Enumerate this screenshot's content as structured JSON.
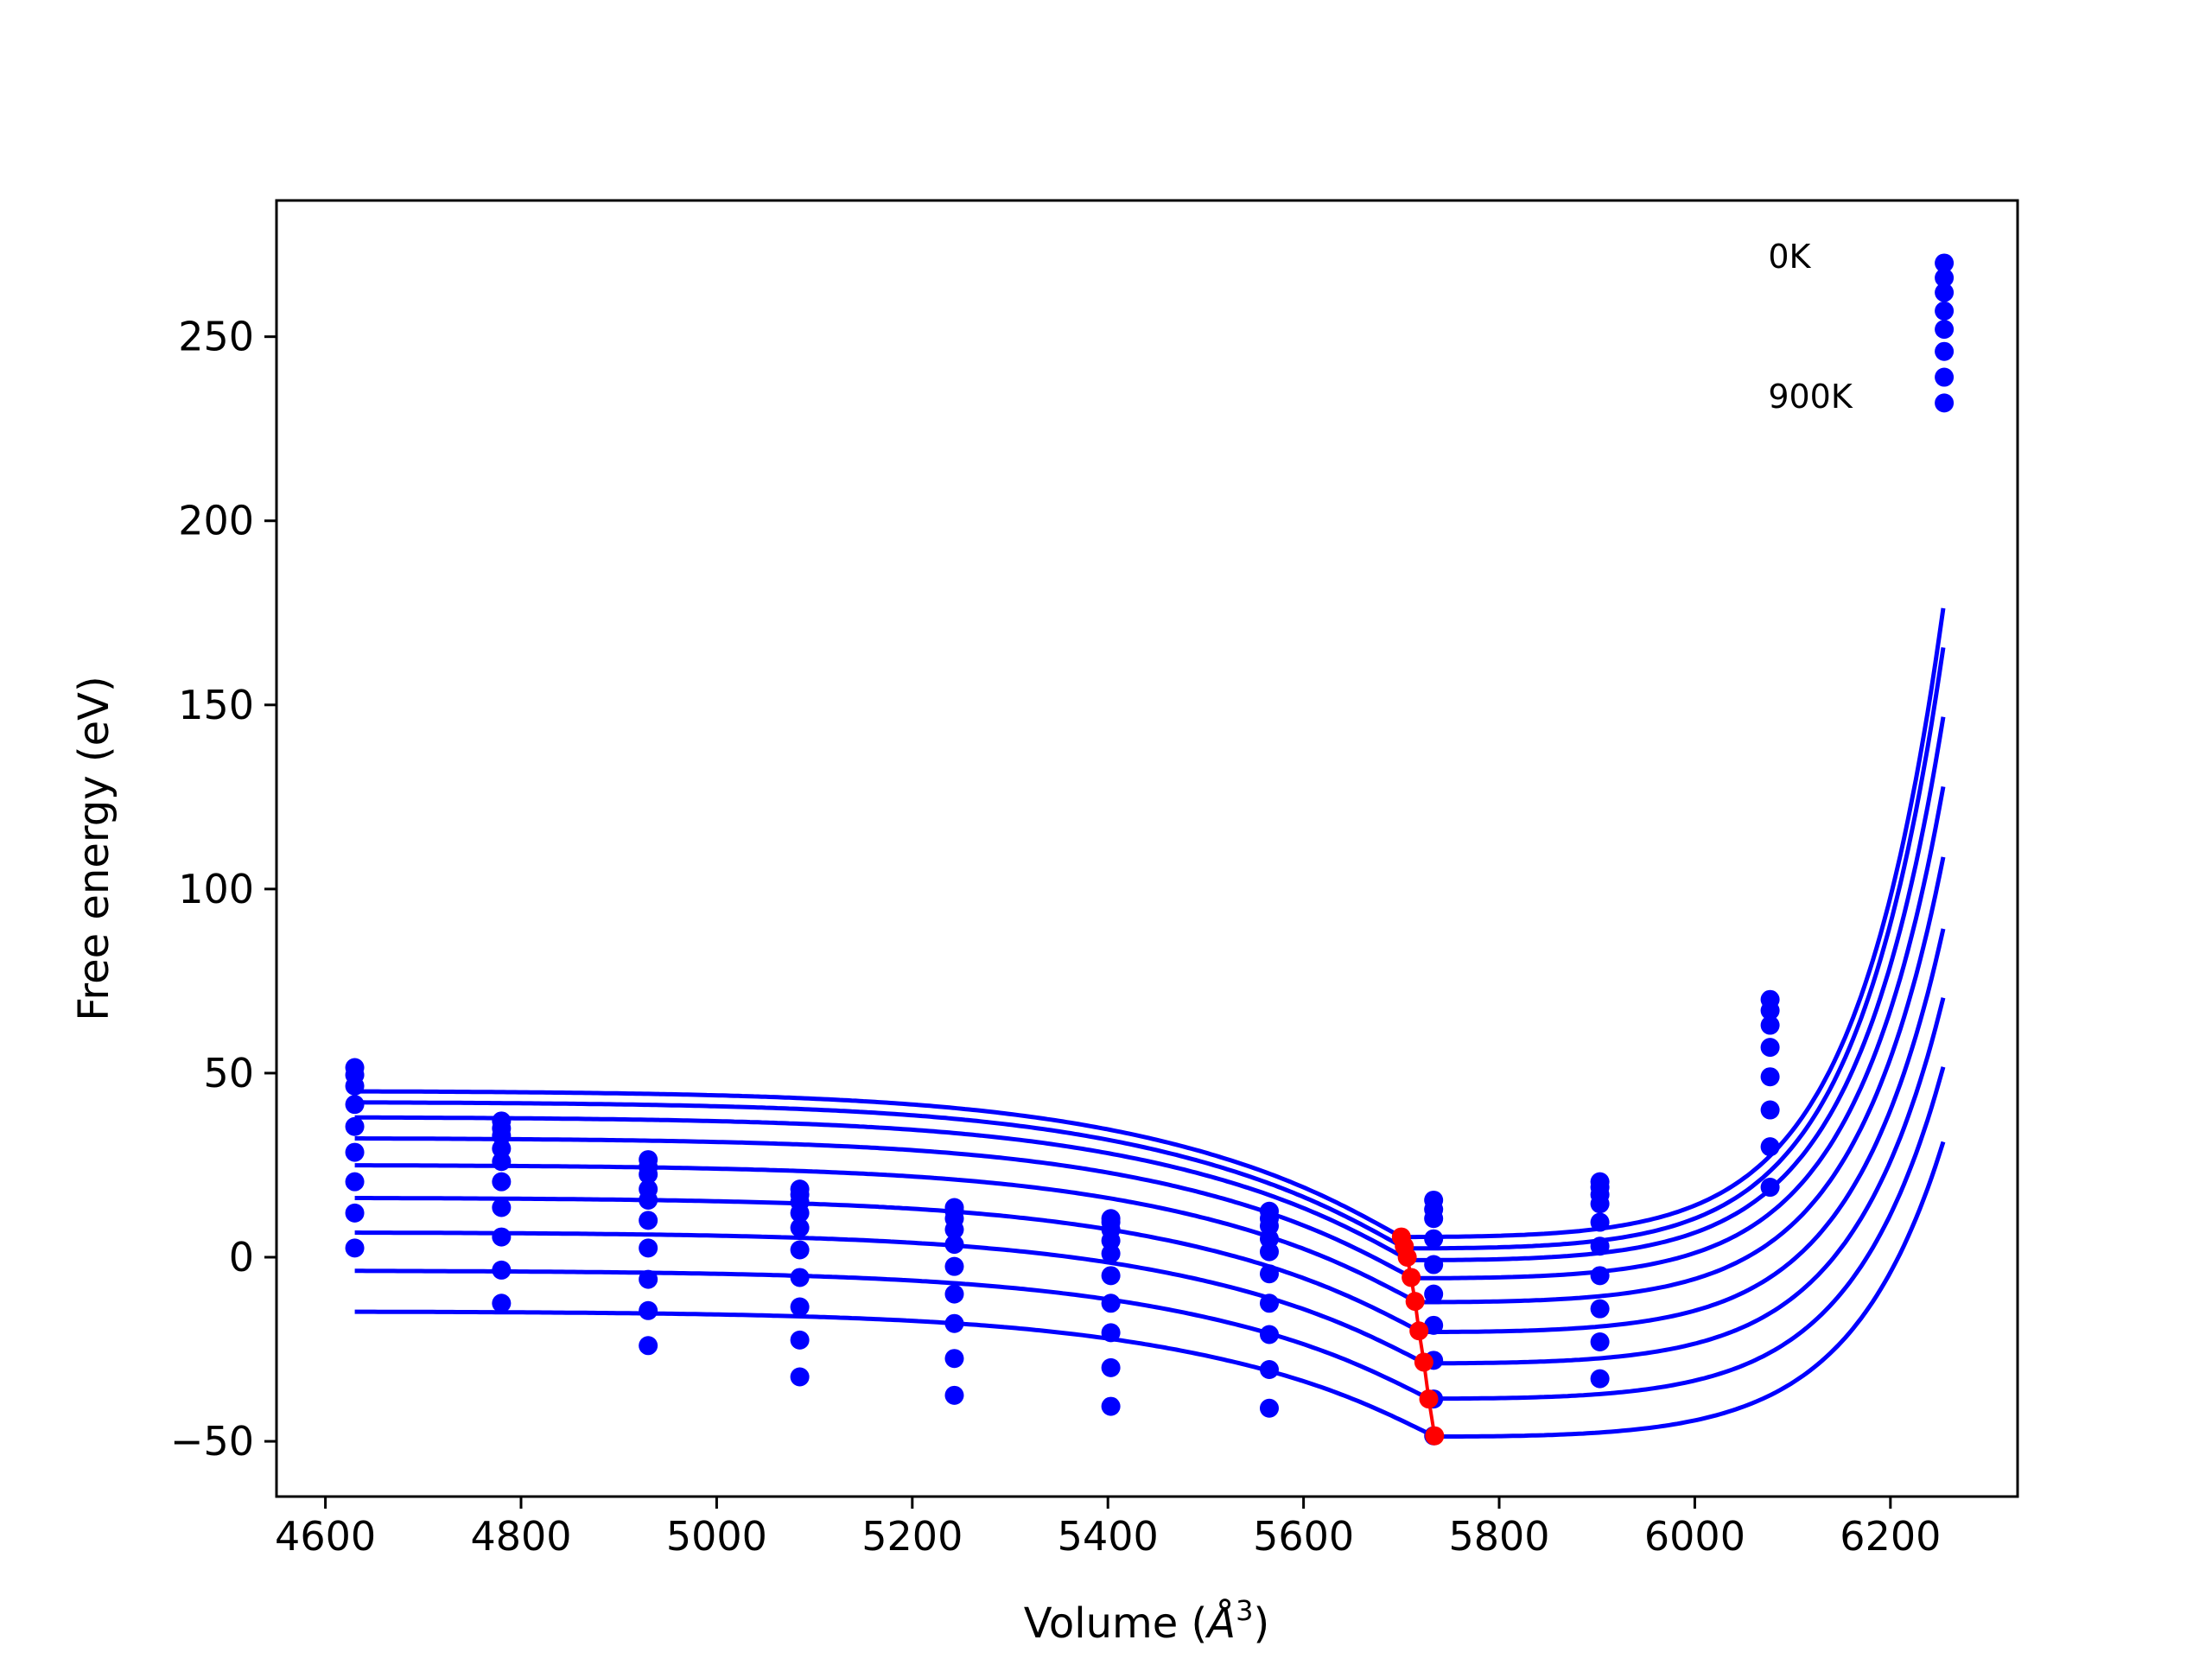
{
  "chart_data": {
    "type": "line",
    "title": "",
    "xlabel": "Volume ($\\AA^3$)",
    "xlabel_parts": {
      "prefix": "Volume (",
      "symbol": "Å",
      "superscript": "3",
      "suffix": ")"
    },
    "ylabel": "Free energy (eV)",
    "xlim": [
      4550,
      6330
    ],
    "ylim": [
      -65,
      287
    ],
    "xticks": [
      4600,
      4800,
      5000,
      5200,
      5400,
      5600,
      5800,
      6000,
      6200
    ],
    "xtick_labels": [
      "4600",
      "4800",
      "5000",
      "5200",
      "5400",
      "5600",
      "5800",
      "6000",
      "6200"
    ],
    "yticks": [
      -50,
      0,
      50,
      100,
      150,
      200,
      250
    ],
    "ytick_labels": [
      "−50",
      "0",
      "50",
      "100",
      "150",
      "200",
      "250"
    ],
    "grid": false,
    "legend": "none",
    "annotations": [
      {
        "text": "0K",
        "x": 6075,
        "y": 272
      },
      {
        "text": "900K",
        "x": 6075,
        "y": 234
      }
    ],
    "colors": {
      "curves": "#0000ff",
      "points": "#0000ff",
      "minima": "#ff0000"
    },
    "x": [
      4630,
      4780,
      4930,
      5085,
      5243,
      5403,
      5565,
      5733,
      5903,
      6077,
      6255
    ],
    "series": [
      {
        "values": [
          51.5,
          37,
          26.5,
          18.5,
          13.5,
          10.5,
          12.5,
          15.5,
          20.5,
          70,
          270
        ]
      },
      {
        "values": [
          49.5,
          35,
          24.5,
          17,
          12.5,
          9.5,
          10.5,
          13,
          19,
          67,
          266
        ]
      },
      {
        "values": [
          46.5,
          33,
          22.5,
          15,
          10.5,
          7.5,
          8.5,
          10.5,
          17,
          63,
          262
        ]
      },
      {
        "values": [
          41.5,
          29.5,
          18.5,
          12,
          7.5,
          4.5,
          5,
          5,
          14.5,
          57,
          257
        ]
      },
      {
        "values": [
          35.5,
          26,
          15.5,
          8,
          3.5,
          1,
          1.5,
          -2,
          9.5,
          49,
          252
        ]
      },
      {
        "values": [
          28.5,
          20.5,
          10,
          2,
          -2.5,
          -5,
          -4.5,
          -10,
          3,
          40,
          246
        ]
      },
      {
        "values": [
          20.5,
          13.5,
          2.5,
          -5.5,
          -10,
          -12.5,
          -12.5,
          -18.5,
          -5,
          30,
          239
        ]
      },
      {
        "values": [
          12,
          5.5,
          -6,
          -13.5,
          -18,
          -20.5,
          -21,
          -28,
          -14,
          19,
          232
        ]
      },
      {
        "values": [
          2.5,
          -3.5,
          -14.5,
          -22.5,
          -27.5,
          -30,
          -30.5,
          -38.5,
          -23,
          null,
          null
        ]
      },
      {
        "values": [
          null,
          -12.5,
          -24,
          -32.5,
          -37.5,
          -40.5,
          -41,
          -48.5,
          -33,
          null,
          null
        ]
      }
    ],
    "fit_curves": [
      {
        "e0": 5.5,
        "v0": 5700,
        "a": 34.2,
        "b": 5.5,
        "k": 0.0112
      },
      {
        "e0": 2.4,
        "v0": 5704,
        "a": 34.3,
        "b": 5.5,
        "k": 0.0112
      },
      {
        "e0": -0.8,
        "v0": 5708,
        "a": 33.4,
        "b": 5.5,
        "k": 0.0111
      },
      {
        "e0": -5.7,
        "v0": 5712,
        "a": 32.6,
        "b": 5.5,
        "k": 0.011
      },
      {
        "e0": -12.2,
        "v0": 5716,
        "a": 31.8,
        "b": 5.5,
        "k": 0.0109
      },
      {
        "e0": -20.3,
        "v0": 5720,
        "a": 31.0,
        "b": 5.5,
        "k": 0.0108
      },
      {
        "e0": -28.8,
        "v0": 5724,
        "a": 30.1,
        "b": 5.5,
        "k": 0.0107
      },
      {
        "e0": -38.4,
        "v0": 5728,
        "a": 29.3,
        "b": 5.5,
        "k": 0.0106
      },
      {
        "e0": -48.7,
        "v0": 5734,
        "a": 28.5,
        "b": 5.5,
        "k": 0.0105
      }
    ],
    "minima": {
      "x": [
        5700,
        5703,
        5706,
        5710,
        5714,
        5718,
        5723,
        5728,
        5734
      ],
      "y": [
        5.5,
        3,
        0,
        -5.5,
        -12,
        -20,
        -28.5,
        -38.5,
        -48.5
      ]
    }
  }
}
